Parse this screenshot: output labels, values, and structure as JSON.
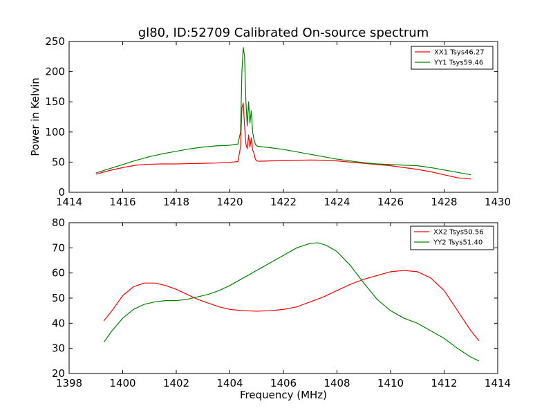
{
  "chart_data": [
    {
      "type": "line",
      "title": "gl80, ID:52709 Calibrated On-source spectrum",
      "xlabel": "",
      "ylabel": "Power in Kelvin",
      "xlim": [
        1414,
        1430
      ],
      "ylim": [
        0,
        250
      ],
      "xticks": [
        1414,
        1416,
        1418,
        1420,
        1422,
        1424,
        1426,
        1428,
        1430
      ],
      "yticks": [
        0,
        50,
        100,
        150,
        200,
        250
      ],
      "legend": "top-right",
      "series": [
        {
          "name": "XX1 Tsys46.27",
          "color": "#ff0000",
          "x": [
            1415.0,
            1415.5,
            1416.0,
            1416.5,
            1417.0,
            1417.5,
            1418.0,
            1418.5,
            1419.0,
            1419.5,
            1420.0,
            1420.3,
            1420.4,
            1420.45,
            1420.5,
            1420.55,
            1420.6,
            1420.65,
            1420.7,
            1420.75,
            1420.8,
            1420.85,
            1420.9,
            1420.95,
            1421.0,
            1421.1,
            1421.5,
            1422.0,
            1422.5,
            1423.0,
            1423.5,
            1424.0,
            1424.5,
            1425.0,
            1425.5,
            1426.0,
            1426.5,
            1427.0,
            1427.5,
            1428.0,
            1428.5,
            1429.0
          ],
          "y": [
            30,
            36,
            41,
            45,
            46.5,
            47,
            47,
            47.5,
            48,
            48.5,
            49.5,
            51,
            75,
            140,
            148,
            110,
            80,
            72,
            95,
            75,
            90,
            70,
            65,
            55,
            52,
            51.5,
            52,
            52.5,
            53,
            53.5,
            53,
            52,
            50,
            48,
            46,
            44,
            41,
            38,
            34,
            29,
            24,
            22
          ]
        },
        {
          "name": "YY1 Tsys59.46",
          "color": "#008000",
          "x": [
            1415.0,
            1415.5,
            1416.0,
            1416.5,
            1417.0,
            1417.5,
            1418.0,
            1418.5,
            1419.0,
            1419.5,
            1420.0,
            1420.3,
            1420.4,
            1420.45,
            1420.5,
            1420.55,
            1420.6,
            1420.65,
            1420.7,
            1420.75,
            1420.8,
            1420.85,
            1420.9,
            1420.95,
            1421.0,
            1421.1,
            1421.5,
            1422.0,
            1422.5,
            1423.0,
            1423.5,
            1424.0,
            1424.5,
            1425.0,
            1425.5,
            1426.0,
            1426.5,
            1427.0,
            1427.5,
            1428.0,
            1428.5,
            1429.0
          ],
          "y": [
            32,
            39,
            46,
            53,
            59,
            64,
            68,
            72,
            75,
            77,
            78,
            80,
            100,
            200,
            240,
            225,
            150,
            110,
            150,
            115,
            135,
            100,
            88,
            80,
            77,
            76,
            74,
            71,
            67,
            63,
            59,
            55,
            52,
            49,
            47,
            46,
            45,
            44,
            41,
            37,
            33,
            29
          ]
        }
      ]
    },
    {
      "type": "line",
      "title": "",
      "xlabel": "Frequency (MHz)",
      "ylabel": "",
      "xlim": [
        1398,
        1414
      ],
      "ylim": [
        20,
        80
      ],
      "xticks": [
        1398,
        1400,
        1402,
        1404,
        1406,
        1408,
        1410,
        1412,
        1414
      ],
      "yticks": [
        20,
        30,
        40,
        50,
        60,
        70,
        80
      ],
      "legend": "top-right",
      "series": [
        {
          "name": "XX2 Tsys50.56",
          "color": "#ff0000",
          "x": [
            1399.3,
            1399.6,
            1400.0,
            1400.4,
            1400.8,
            1401.2,
            1401.6,
            1402.0,
            1402.4,
            1402.8,
            1403.2,
            1403.6,
            1404.0,
            1404.5,
            1405.0,
            1405.5,
            1406.0,
            1406.5,
            1407.0,
            1407.5,
            1408.0,
            1408.5,
            1409.0,
            1409.5,
            1410.0,
            1410.5,
            1411.0,
            1411.5,
            1412.0,
            1412.5,
            1413.0,
            1413.3
          ],
          "y": [
            41,
            45,
            51,
            54.5,
            56,
            56,
            55,
            53.5,
            51.5,
            49.5,
            48,
            46.5,
            45.5,
            45,
            44.8,
            45,
            45.5,
            46.5,
            48.5,
            50.5,
            53,
            55.5,
            57.5,
            59,
            60.5,
            61,
            60.5,
            58,
            53,
            45,
            37,
            33
          ]
        },
        {
          "name": "YY2 Tsys51.40",
          "color": "#008000",
          "x": [
            1399.3,
            1399.6,
            1400.0,
            1400.4,
            1400.8,
            1401.2,
            1401.6,
            1402.0,
            1402.4,
            1402.8,
            1403.2,
            1403.6,
            1404.0,
            1404.5,
            1405.0,
            1405.5,
            1406.0,
            1406.5,
            1407.0,
            1407.3,
            1407.6,
            1408.0,
            1408.5,
            1409.0,
            1409.5,
            1410.0,
            1410.5,
            1411.0,
            1411.5,
            1412.0,
            1412.5,
            1413.0,
            1413.3
          ],
          "y": [
            32.5,
            37,
            42,
            45.5,
            47.5,
            48.5,
            49,
            49,
            49.5,
            50.5,
            51.5,
            53,
            55,
            58,
            61,
            64,
            67,
            70,
            71.8,
            72,
            71,
            68.5,
            63,
            56,
            49.5,
            45,
            42,
            40,
            37,
            34,
            30,
            26.5,
            25
          ]
        }
      ]
    }
  ]
}
